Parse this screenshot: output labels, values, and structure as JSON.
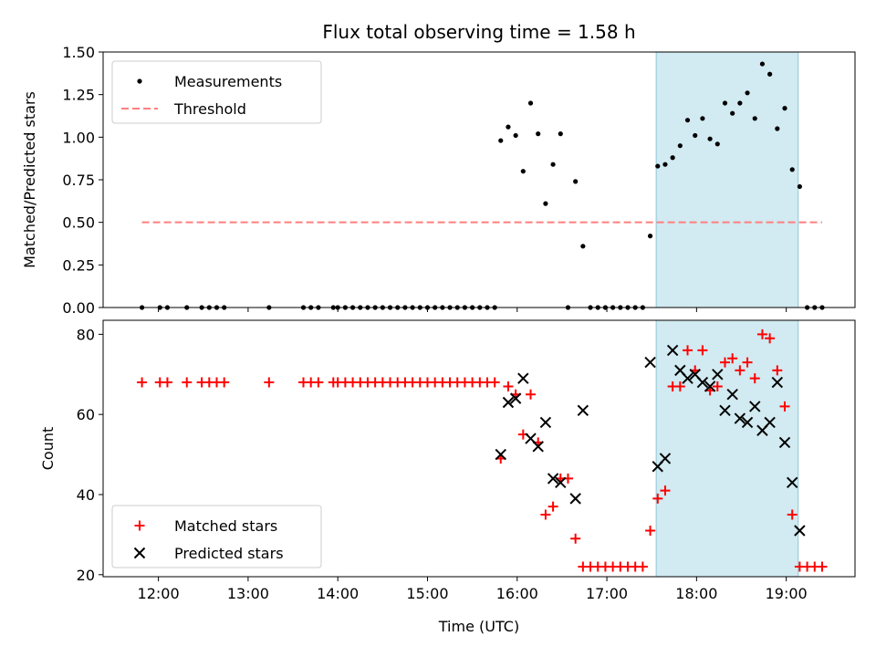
{
  "chart_data": [
    {
      "type": "scatter",
      "title": "Flux total observing time = 1.58 h",
      "xlabel": "",
      "ylabel": "Matched/Predicted stars",
      "x_type": "time",
      "xlim": [
        "11:23",
        "19:46"
      ],
      "ylim": [
        0,
        1.5
      ],
      "yticks": [
        "0.00",
        "0.25",
        "0.50",
        "0.75",
        "1.00",
        "1.25",
        "1.50"
      ],
      "xticks": [
        "12:00",
        "13:00",
        "14:00",
        "15:00",
        "16:00",
        "17:00",
        "18:00",
        "19:00"
      ],
      "legend_position": "top-left",
      "shaded_interval": [
        "17:33",
        "19:08"
      ],
      "shade_color": "#add8e6",
      "series": [
        {
          "name": "Measurements",
          "marker": "dot",
          "color": "#000000",
          "points": [
            [
              "11:49",
              0
            ],
            [
              "12:01",
              0
            ],
            [
              "12:06",
              0
            ],
            [
              "12:19",
              0
            ],
            [
              "12:29",
              0
            ],
            [
              "12:34",
              0
            ],
            [
              "12:39",
              0
            ],
            [
              "12:44",
              0
            ],
            [
              "13:14",
              0
            ],
            [
              "13:37",
              0
            ],
            [
              "13:42",
              0
            ],
            [
              "13:47",
              0
            ],
            [
              "13:57",
              0
            ],
            [
              "14:00",
              0
            ],
            [
              "14:05",
              0
            ],
            [
              "14:10",
              0
            ],
            [
              "14:15",
              0
            ],
            [
              "14:20",
              0
            ],
            [
              "14:25",
              0
            ],
            [
              "14:30",
              0
            ],
            [
              "14:35",
              0
            ],
            [
              "14:40",
              0
            ],
            [
              "14:45",
              0
            ],
            [
              "14:50",
              0
            ],
            [
              "14:55",
              0
            ],
            [
              "15:00",
              0
            ],
            [
              "15:05",
              0
            ],
            [
              "15:10",
              0
            ],
            [
              "15:15",
              0
            ],
            [
              "15:20",
              0
            ],
            [
              "15:25",
              0
            ],
            [
              "15:30",
              0
            ],
            [
              "15:35",
              0
            ],
            [
              "15:40",
              0
            ],
            [
              "15:45",
              0
            ],
            [
              "15:49",
              0.98
            ],
            [
              "15:54",
              1.06
            ],
            [
              "15:59",
              1.01
            ],
            [
              "16:04",
              0.8
            ],
            [
              "16:09",
              1.2
            ],
            [
              "16:14",
              1.02
            ],
            [
              "16:19",
              0.61
            ],
            [
              "16:24",
              0.84
            ],
            [
              "16:29",
              1.02
            ],
            [
              "16:34",
              0
            ],
            [
              "16:39",
              0.74
            ],
            [
              "16:44",
              0.36
            ],
            [
              "16:49",
              0
            ],
            [
              "16:54",
              0
            ],
            [
              "16:59",
              0
            ],
            [
              "17:04",
              0
            ],
            [
              "17:09",
              0
            ],
            [
              "17:14",
              0
            ],
            [
              "17:19",
              0
            ],
            [
              "17:24",
              0
            ],
            [
              "17:29",
              0.42
            ],
            [
              "17:34",
              0.83
            ],
            [
              "17:39",
              0.84
            ],
            [
              "17:44",
              0.88
            ],
            [
              "17:49",
              0.95
            ],
            [
              "17:54",
              1.1
            ],
            [
              "17:59",
              1.01
            ],
            [
              "18:04",
              1.11
            ],
            [
              "18:09",
              0.99
            ],
            [
              "18:14",
              0.96
            ],
            [
              "18:19",
              1.2
            ],
            [
              "18:24",
              1.14
            ],
            [
              "18:29",
              1.2
            ],
            [
              "18:34",
              1.26
            ],
            [
              "18:39",
              1.11
            ],
            [
              "18:44",
              1.43
            ],
            [
              "18:49",
              1.37
            ],
            [
              "18:54",
              1.05
            ],
            [
              "18:59",
              1.17
            ],
            [
              "19:04",
              0.81
            ],
            [
              "19:09",
              0.71
            ],
            [
              "19:14",
              0
            ],
            [
              "19:19",
              0
            ],
            [
              "19:24",
              0
            ]
          ]
        },
        {
          "name": "Threshold",
          "marker": "dashed-line",
          "color": "#ff7f7f",
          "points": [
            [
              "11:49",
              0.5
            ],
            [
              "19:24",
              0.5
            ]
          ]
        }
      ]
    },
    {
      "type": "scatter",
      "title": "",
      "xlabel": "Time (UTC)",
      "ylabel": "Count",
      "x_type": "time",
      "xlim": [
        "11:23",
        "19:46"
      ],
      "ylim": [
        19.5,
        83.5
      ],
      "yticks": [
        "20",
        "40",
        "60",
        "80"
      ],
      "xticks": [
        "12:00",
        "13:00",
        "14:00",
        "15:00",
        "16:00",
        "17:00",
        "18:00",
        "19:00"
      ],
      "legend_position": "bottom-left",
      "shaded_interval": [
        "17:33",
        "19:08"
      ],
      "shade_color": "#add8e6",
      "series": [
        {
          "name": "Matched stars",
          "marker": "plus",
          "color": "#ff0000",
          "points": [
            [
              "11:49",
              68
            ],
            [
              "12:01",
              68
            ],
            [
              "12:06",
              68
            ],
            [
              "12:19",
              68
            ],
            [
              "12:29",
              68
            ],
            [
              "12:34",
              68
            ],
            [
              "12:39",
              68
            ],
            [
              "12:44",
              68
            ],
            [
              "13:14",
              68
            ],
            [
              "13:37",
              68
            ],
            [
              "13:42",
              68
            ],
            [
              "13:47",
              68
            ],
            [
              "13:57",
              68
            ],
            [
              "14:00",
              68
            ],
            [
              "14:05",
              68
            ],
            [
              "14:10",
              68
            ],
            [
              "14:15",
              68
            ],
            [
              "14:20",
              68
            ],
            [
              "14:25",
              68
            ],
            [
              "14:30",
              68
            ],
            [
              "14:35",
              68
            ],
            [
              "14:40",
              68
            ],
            [
              "14:45",
              68
            ],
            [
              "14:50",
              68
            ],
            [
              "14:55",
              68
            ],
            [
              "15:00",
              68
            ],
            [
              "15:05",
              68
            ],
            [
              "15:10",
              68
            ],
            [
              "15:15",
              68
            ],
            [
              "15:20",
              68
            ],
            [
              "15:25",
              68
            ],
            [
              "15:30",
              68
            ],
            [
              "15:35",
              68
            ],
            [
              "15:40",
              68
            ],
            [
              "15:45",
              68
            ],
            [
              "15:49",
              49
            ],
            [
              "15:54",
              67
            ],
            [
              "15:59",
              65
            ],
            [
              "16:04",
              55
            ],
            [
              "16:09",
              65
            ],
            [
              "16:14",
              53
            ],
            [
              "16:19",
              35
            ],
            [
              "16:24",
              37
            ],
            [
              "16:29",
              44
            ],
            [
              "16:34",
              44
            ],
            [
              "16:39",
              29
            ],
            [
              "16:44",
              22
            ],
            [
              "16:49",
              22
            ],
            [
              "16:54",
              22
            ],
            [
              "16:59",
              22
            ],
            [
              "17:04",
              22
            ],
            [
              "17:09",
              22
            ],
            [
              "17:14",
              22
            ],
            [
              "17:19",
              22
            ],
            [
              "17:24",
              22
            ],
            [
              "17:29",
              31
            ],
            [
              "17:34",
              39
            ],
            [
              "17:39",
              41
            ],
            [
              "17:44",
              67
            ],
            [
              "17:49",
              67
            ],
            [
              "17:54",
              76
            ],
            [
              "17:59",
              71
            ],
            [
              "18:04",
              76
            ],
            [
              "18:09",
              66
            ],
            [
              "18:14",
              67
            ],
            [
              "18:19",
              73
            ],
            [
              "18:24",
              74
            ],
            [
              "18:29",
              71
            ],
            [
              "18:34",
              73
            ],
            [
              "18:39",
              69
            ],
            [
              "18:44",
              80
            ],
            [
              "18:49",
              79
            ],
            [
              "18:54",
              71
            ],
            [
              "18:59",
              62
            ],
            [
              "19:04",
              35
            ],
            [
              "19:09",
              22
            ],
            [
              "19:14",
              22
            ],
            [
              "19:19",
              22
            ],
            [
              "19:24",
              22
            ]
          ]
        },
        {
          "name": "Predicted stars",
          "marker": "x",
          "color": "#000000",
          "points": [
            [
              "15:49",
              50
            ],
            [
              "15:54",
              63
            ],
            [
              "15:59",
              64
            ],
            [
              "16:04",
              69
            ],
            [
              "16:09",
              54
            ],
            [
              "16:14",
              52
            ],
            [
              "16:19",
              58
            ],
            [
              "16:24",
              44
            ],
            [
              "16:29",
              43
            ],
            [
              "16:39",
              39
            ],
            [
              "16:44",
              61
            ],
            [
              "17:29",
              73
            ],
            [
              "17:34",
              47
            ],
            [
              "17:39",
              49
            ],
            [
              "17:44",
              76
            ],
            [
              "17:49",
              71
            ],
            [
              "17:54",
              69
            ],
            [
              "17:59",
              70
            ],
            [
              "18:04",
              68
            ],
            [
              "18:09",
              67
            ],
            [
              "18:14",
              70
            ],
            [
              "18:19",
              61
            ],
            [
              "18:24",
              65
            ],
            [
              "18:29",
              59
            ],
            [
              "18:34",
              58
            ],
            [
              "18:39",
              62
            ],
            [
              "18:44",
              56
            ],
            [
              "18:49",
              58
            ],
            [
              "18:54",
              68
            ],
            [
              "18:59",
              53
            ],
            [
              "19:04",
              43
            ],
            [
              "19:09",
              31
            ]
          ]
        }
      ]
    }
  ]
}
